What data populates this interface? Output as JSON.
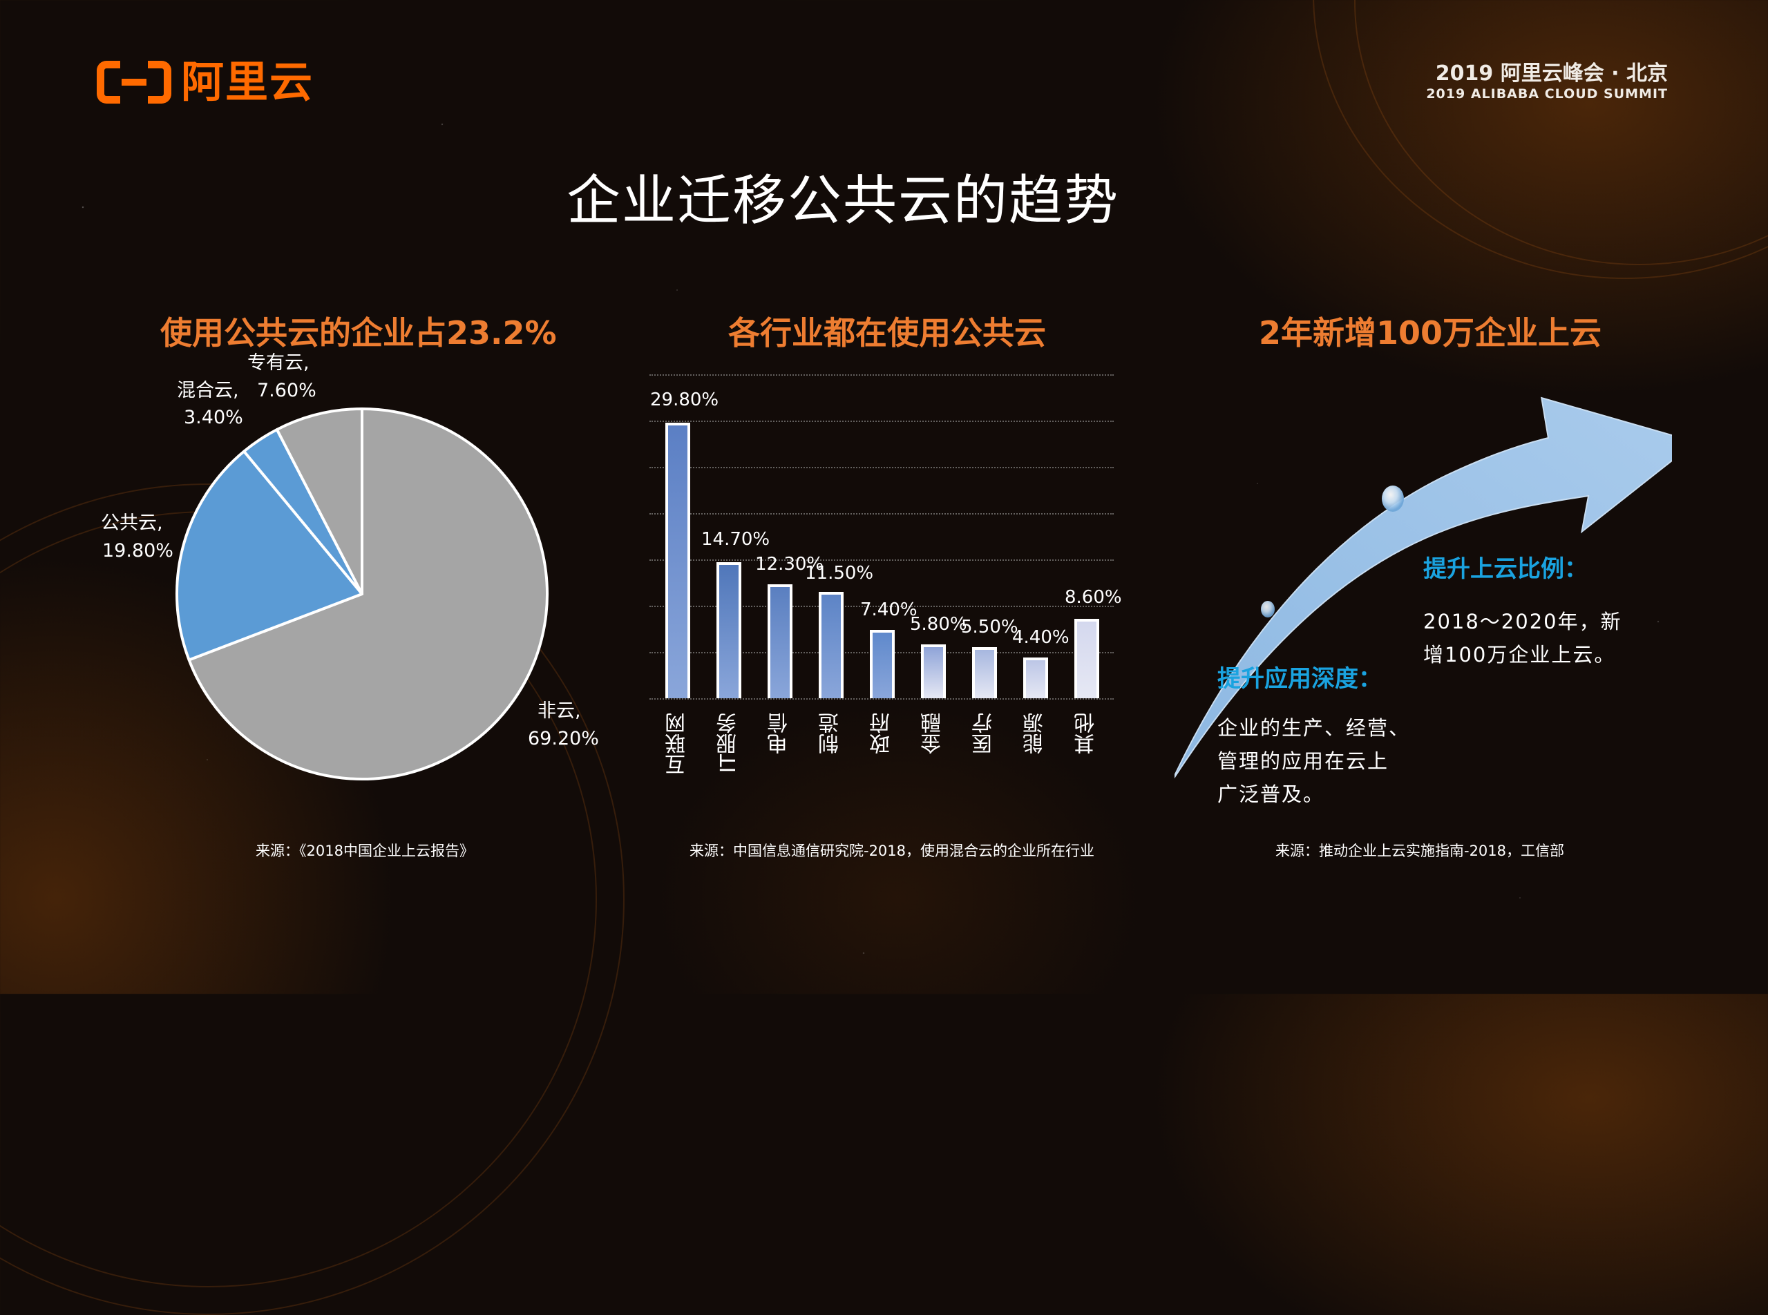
{
  "header": {
    "logo_text": "阿里云",
    "summit_cn": "2019 阿里云峰会 · 北京",
    "summit_en": "2019 ALIBABA CLOUD SUMMIT"
  },
  "page_title": "企业迁移公共云的趋势",
  "colors": {
    "accent_orange": "#ee7d31",
    "logo_orange": "#ff6a00",
    "pie_blue": "#5b9bd5",
    "pie_gray": "#a5a5a5",
    "highlight_blue": "#1aa3e0",
    "arrow_blue": "#9dc3e6"
  },
  "sections": {
    "pie": {
      "title": "使用公共云的企业占23.2%",
      "source": "来源：《2018中国企业上云报告》",
      "labels": {
        "private": [
          "专有云,",
          "7.60%"
        ],
        "hybrid": [
          "混合云,",
          "3.40%"
        ],
        "public": [
          "公共云,",
          "19.80%"
        ],
        "noncloud": [
          "非云,",
          "69.20%"
        ]
      }
    },
    "bar": {
      "title": "各行业都在使用公共云",
      "source": "来源：中国信息通信研究院-2018，使用混合云的企业所在行业"
    },
    "trend": {
      "title": "2年新增100万企业上云",
      "source": "来源：推动企业上云实施指南-2018，工信部",
      "points": [
        {
          "title": "提升上云比例：",
          "body": [
            "2018～2020年，新",
            "增100万企业上云。"
          ]
        },
        {
          "title": "提升应用深度：",
          "body": [
            "企业的生产、经营、",
            "管理的应用在云上",
            "广泛普及。"
          ]
        }
      ]
    }
  },
  "chart_data": [
    {
      "type": "pie",
      "title": "使用公共云的企业占23.2%",
      "categories": [
        "非云",
        "公共云",
        "混合云",
        "专有云"
      ],
      "values": [
        69.2,
        19.8,
        3.4,
        7.6
      ],
      "value_labels": [
        "69.20%",
        "19.80%",
        "3.40%",
        "7.60%"
      ],
      "colors": [
        "#a5a5a5",
        "#5b9bd5",
        "#5b9bd5",
        "#a5a5a5"
      ],
      "start_angle_deg": 0,
      "direction": "clockwise",
      "legend": "none (data labels)"
    },
    {
      "type": "bar",
      "title": "各行业都在使用公共云",
      "categories": [
        "互联网",
        "IT服务",
        "电信",
        "制造",
        "政府",
        "金融",
        "医疗",
        "能源",
        "其他"
      ],
      "values": [
        29.8,
        14.7,
        12.3,
        11.5,
        7.4,
        5.8,
        5.5,
        4.4,
        8.6
      ],
      "value_labels": [
        "29.80%",
        "14.70%",
        "12.30%",
        "11.50%",
        "7.40%",
        "5.80%",
        "5.50%",
        "4.40%",
        "8.60%"
      ],
      "colors": [
        "#5b7fc4",
        "#5077ba",
        "#5a7fc0",
        "#5d84c6",
        "#5f89cc",
        "#8fa4d8",
        "#a7b7df",
        "#bcc6e6",
        "#d4d8ee"
      ],
      "xlabel": "",
      "ylabel": "",
      "ylim": [
        0,
        35
      ],
      "grid": true,
      "grid_step": 5,
      "xtick_rotation": -90
    }
  ]
}
